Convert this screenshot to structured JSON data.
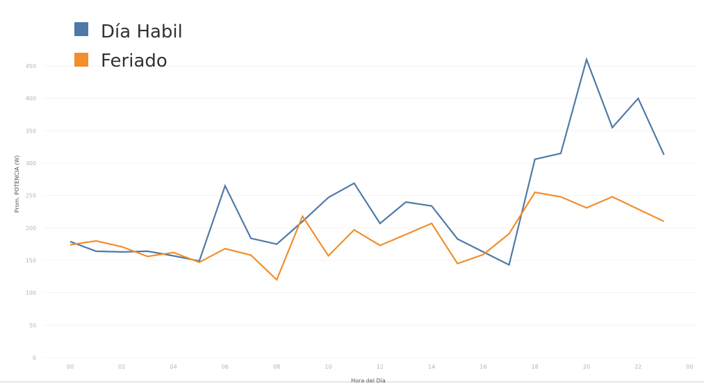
{
  "chart_data": {
    "type": "line",
    "xlabel": "Hora del Día",
    "ylabel": "Prom. POTENCIA (W)",
    "ylim": [
      0,
      470
    ],
    "y_ticks": [
      0,
      50,
      100,
      150,
      200,
      250,
      300,
      350,
      400,
      450
    ],
    "x_tick_labels": [
      "00",
      "02",
      "04",
      "06",
      "08",
      "10",
      "12",
      "14",
      "16",
      "18",
      "20",
      "22",
      "00"
    ],
    "x": [
      0,
      1,
      2,
      3,
      4,
      5,
      6,
      7,
      8,
      9,
      10,
      11,
      12,
      13,
      14,
      15,
      16,
      17,
      18,
      19,
      20,
      21,
      22,
      23
    ],
    "grid": "horizontal",
    "legend_position": "top-left",
    "series": [
      {
        "name": "Día Habil",
        "color": "#4e79a7",
        "values": [
          179,
          164,
          163,
          164,
          157,
          149,
          265,
          184,
          175,
          210,
          247,
          269,
          207,
          240,
          234,
          183,
          163,
          143,
          306,
          315,
          460,
          355,
          400,
          313
        ]
      },
      {
        "name": "Feriado",
        "color": "#f28e2b",
        "values": [
          174,
          180,
          171,
          156,
          162,
          147,
          168,
          158,
          120,
          218,
          157,
          197,
          173,
          190,
          207,
          145,
          159,
          191,
          255,
          248,
          231,
          248,
          229,
          210
        ]
      }
    ]
  }
}
